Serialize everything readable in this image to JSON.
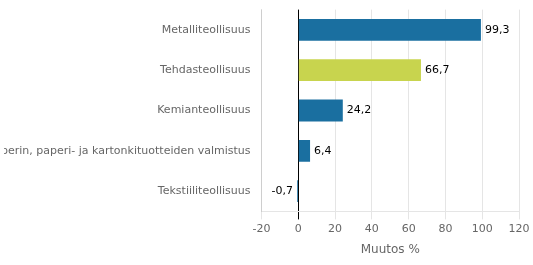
{
  "chart_data": {
    "type": "bar",
    "orientation": "horizontal",
    "categories": [
      "Tekstiiliteollisuus",
      "Paperin, paperi- ja kartonkituotteiden valmistus",
      "Kemianteollisuus",
      "Tehdasteollisuus",
      "Metalliteollisuus"
    ],
    "values": [
      -0.7,
      6.4,
      24.2,
      66.7,
      99.3
    ],
    "value_labels": [
      "-0,7",
      "6,4",
      "24,2",
      "66,7",
      "99,3"
    ],
    "colors": [
      "#1a6fa0",
      "#1a6fa0",
      "#1a6fa0",
      "#c8d44e",
      "#1a6fa0"
    ],
    "xlabel": "Muutos %",
    "xlim": [
      -20,
      120
    ],
    "xticks": [
      -20,
      0,
      20,
      40,
      60,
      80,
      100,
      120
    ],
    "grid": true,
    "data_labels": true
  }
}
